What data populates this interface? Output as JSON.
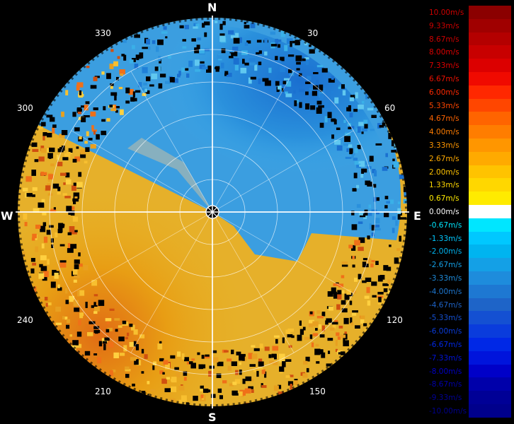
{
  "compass": {
    "north": "N",
    "south": "S",
    "east": "E",
    "west": "W"
  },
  "bearings": [
    "30",
    "60",
    "120",
    "150",
    "210",
    "240",
    "300",
    "330"
  ],
  "legend": [
    {
      "label": "10.00m/s",
      "color": "#8b0000",
      "text_color": "#cc0000"
    },
    {
      "label": "9.33m/s",
      "color": "#a00000",
      "text_color": "#cc0000"
    },
    {
      "label": "8.67m/s",
      "color": "#b40000",
      "text_color": "#cc0000"
    },
    {
      "label": "8.00m/s",
      "color": "#c80000",
      "text_color": "#dd0000"
    },
    {
      "label": "7.33m/s",
      "color": "#dc0000",
      "text_color": "#dd0000"
    },
    {
      "label": "6.67m/s",
      "color": "#f00a00",
      "text_color": "#ee1100"
    },
    {
      "label": "6.00m/s",
      "color": "#ff2800",
      "text_color": "#ff2800"
    },
    {
      "label": "5.33m/s",
      "color": "#ff4600",
      "text_color": "#ff4600"
    },
    {
      "label": "4.67m/s",
      "color": "#ff6400",
      "text_color": "#ff6400"
    },
    {
      "label": "4.00m/s",
      "color": "#ff7d00",
      "text_color": "#ff7d00"
    },
    {
      "label": "3.33m/s",
      "color": "#ff9600",
      "text_color": "#ff9600"
    },
    {
      "label": "2.67m/s",
      "color": "#ffaa00",
      "text_color": "#ffaa00"
    },
    {
      "label": "2.00m/s",
      "color": "#ffc300",
      "text_color": "#ffc300"
    },
    {
      "label": "1.33m/s",
      "color": "#ffd700",
      "text_color": "#ffd700"
    },
    {
      "label": "0.67m/s",
      "color": "#ffeb00",
      "text_color": "#ffeb00"
    },
    {
      "label": "0.00m/s",
      "color": "#ffffff",
      "text_color": "#ffffff"
    },
    {
      "label": "-0.67m/s",
      "color": "#00e6ff",
      "text_color": "#00e6ff"
    },
    {
      "label": "-1.33m/s",
      "color": "#00c8ff",
      "text_color": "#00c8ff"
    },
    {
      "label": "-2.00m/s",
      "color": "#00b4f0",
      "text_color": "#00b4f0"
    },
    {
      "label": "-2.67m/s",
      "color": "#14a0e6",
      "text_color": "#14a0e6"
    },
    {
      "label": "-3.33m/s",
      "color": "#1e8cdc",
      "text_color": "#1e8cdc"
    },
    {
      "label": "-4.00m/s",
      "color": "#1e78d2",
      "text_color": "#1e78d2"
    },
    {
      "label": "-4.67m/s",
      "color": "#1e64c8",
      "text_color": "#1e64c8"
    },
    {
      "label": "-5.33m/s",
      "color": "#1450d2",
      "text_color": "#1450d2"
    },
    {
      "label": "-6.00m/s",
      "color": "#0a3cdc",
      "text_color": "#0a3cdc"
    },
    {
      "label": "-6.67m/s",
      "color": "#0028e6",
      "text_color": "#0028e6"
    },
    {
      "label": "-7.33m/s",
      "color": "#0014dc",
      "text_color": "#0014dc"
    },
    {
      "label": "-8.00m/s",
      "color": "#0000c8",
      "text_color": "#0000c8"
    },
    {
      "label": "-8.67m/s",
      "color": "#0000aa",
      "text_color": "#0000aa"
    },
    {
      "label": "-9.33m/s",
      "color": "#000096",
      "text_color": "#000096"
    },
    {
      "label": "-10.00m/s",
      "color": "#00008c",
      "text_color": "#00008c"
    }
  ]
}
